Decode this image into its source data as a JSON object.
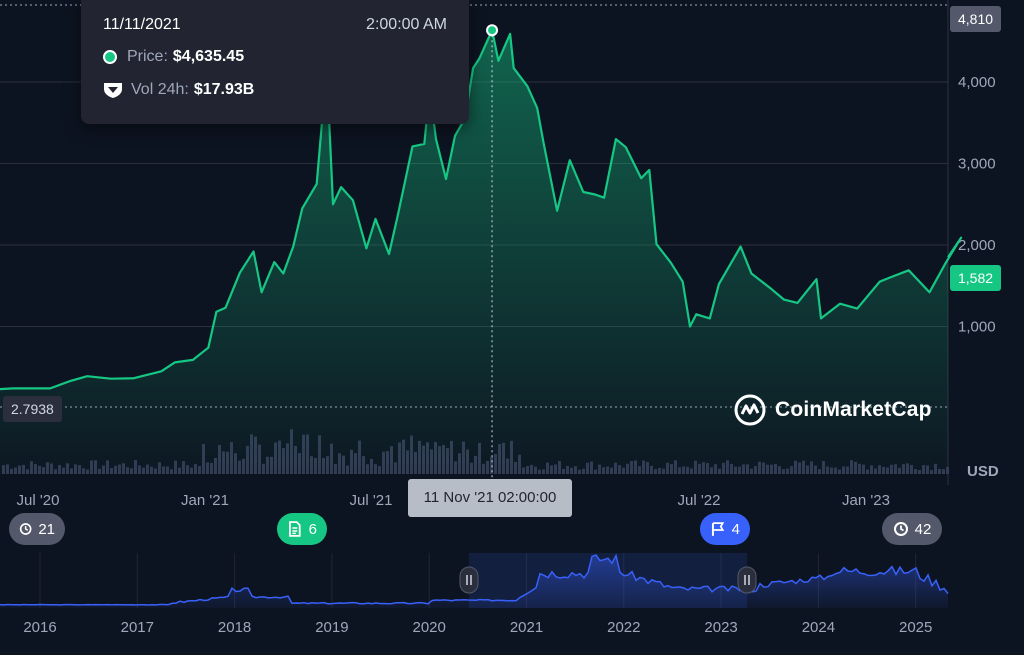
{
  "tooltip": {
    "date": "11/11/2021",
    "time": "2:00:00 AM",
    "price_label": "Price:",
    "price_value": "$4,635.45",
    "vol_label": "Vol 24h:",
    "vol_value": "$17.93B"
  },
  "price_tags": {
    "max": "4,810",
    "last": "1,582",
    "min": "2.7938"
  },
  "currency": "USD",
  "crosshair_label": "11 Nov '21 02:00:00",
  "events": {
    "history": "21",
    "docs": "6",
    "flags": "4",
    "later": "42"
  },
  "brand": {
    "name": "CoinMarketCap",
    "accent": "#16c784"
  },
  "colors": {
    "up": "#16c784",
    "background": "#0d1421",
    "navigator": "#3861fb"
  },
  "chart_data": {
    "type": "area",
    "x_ticks": [
      "Jul '20",
      "Jan '21",
      "Jul '21",
      "Jul '22",
      "Jan '23"
    ],
    "y_ticks": [
      1000,
      2000,
      3000,
      4000
    ],
    "y_tick_labels": [
      "1,000",
      "2,000",
      "3,000",
      "4,000"
    ],
    "ylim": [
      0,
      4900
    ],
    "grid": true,
    "crosshair": {
      "x": "2021-11-11",
      "y": 4635.45
    },
    "series": [
      {
        "values": [
          {
            "x": "2020-03-12",
            "y": 220
          },
          {
            "x": "2020-04-20",
            "y": 215
          },
          {
            "x": "2020-05-30",
            "y": 240
          },
          {
            "x": "2020-06-20",
            "y": 240
          },
          {
            "x": "2020-07-10",
            "y": 240
          },
          {
            "x": "2020-08-01",
            "y": 330
          },
          {
            "x": "2020-08-20",
            "y": 390
          },
          {
            "x": "2020-09-15",
            "y": 360
          },
          {
            "x": "2020-10-10",
            "y": 365
          },
          {
            "x": "2020-11-10",
            "y": 450
          },
          {
            "x": "2020-11-25",
            "y": 560
          },
          {
            "x": "2020-12-15",
            "y": 590
          },
          {
            "x": "2021-01-01",
            "y": 740
          },
          {
            "x": "2021-01-10",
            "y": 1180
          },
          {
            "x": "2021-01-20",
            "y": 1230
          },
          {
            "x": "2021-02-05",
            "y": 1660
          },
          {
            "x": "2021-02-20",
            "y": 1920
          },
          {
            "x": "2021-03-01",
            "y": 1420
          },
          {
            "x": "2021-03-15",
            "y": 1790
          },
          {
            "x": "2021-03-25",
            "y": 1650
          },
          {
            "x": "2021-04-05",
            "y": 1980
          },
          {
            "x": "2021-04-15",
            "y": 2450
          },
          {
            "x": "2021-05-01",
            "y": 2750
          },
          {
            "x": "2021-05-12",
            "y": 4180
          },
          {
            "x": "2021-05-19",
            "y": 2500
          },
          {
            "x": "2021-05-28",
            "y": 2710
          },
          {
            "x": "2021-06-10",
            "y": 2550
          },
          {
            "x": "2021-06-25",
            "y": 1960
          },
          {
            "x": "2021-07-05",
            "y": 2320
          },
          {
            "x": "2021-07-20",
            "y": 1890
          },
          {
            "x": "2021-07-30",
            "y": 2380
          },
          {
            "x": "2021-08-15",
            "y": 3210
          },
          {
            "x": "2021-08-28",
            "y": 3240
          },
          {
            "x": "2021-09-03",
            "y": 3900
          },
          {
            "x": "2021-09-10",
            "y": 3300
          },
          {
            "x": "2021-09-21",
            "y": 2810
          },
          {
            "x": "2021-10-01",
            "y": 3340
          },
          {
            "x": "2021-10-12",
            "y": 3550
          },
          {
            "x": "2021-10-21",
            "y": 4170
          },
          {
            "x": "2021-10-28",
            "y": 4290
          },
          {
            "x": "2021-11-11",
            "y": 4635
          },
          {
            "x": "2021-11-18",
            "y": 4260
          },
          {
            "x": "2021-12-01",
            "y": 4590
          },
          {
            "x": "2021-12-05",
            "y": 4170
          },
          {
            "x": "2021-12-20",
            "y": 3950
          },
          {
            "x": "2021-12-31",
            "y": 3680
          },
          {
            "x": "2022-01-07",
            "y": 3250
          },
          {
            "x": "2022-01-22",
            "y": 2420
          },
          {
            "x": "2022-02-05",
            "y": 3040
          },
          {
            "x": "2022-02-20",
            "y": 2650
          },
          {
            "x": "2022-03-05",
            "y": 2620
          },
          {
            "x": "2022-03-15",
            "y": 2580
          },
          {
            "x": "2022-03-28",
            "y": 3300
          },
          {
            "x": "2022-04-08",
            "y": 3200
          },
          {
            "x": "2022-04-25",
            "y": 2820
          },
          {
            "x": "2022-05-04",
            "y": 2920
          },
          {
            "x": "2022-05-12",
            "y": 2010
          },
          {
            "x": "2022-05-28",
            "y": 1780
          },
          {
            "x": "2022-06-10",
            "y": 1550
          },
          {
            "x": "2022-06-18",
            "y": 1000
          },
          {
            "x": "2022-06-25",
            "y": 1150
          },
          {
            "x": "2022-07-10",
            "y": 1100
          },
          {
            "x": "2022-07-20",
            "y": 1520
          },
          {
            "x": "2022-08-13",
            "y": 1980
          },
          {
            "x": "2022-08-25",
            "y": 1650
          },
          {
            "x": "2022-09-15",
            "y": 1470
          },
          {
            "x": "2022-09-30",
            "y": 1330
          },
          {
            "x": "2022-10-15",
            "y": 1290
          },
          {
            "x": "2022-11-05",
            "y": 1580
          },
          {
            "x": "2022-11-10",
            "y": 1100
          },
          {
            "x": "2022-12-01",
            "y": 1280
          },
          {
            "x": "2022-12-20",
            "y": 1220
          },
          {
            "x": "2023-01-14",
            "y": 1550
          },
          {
            "x": "2023-01-25",
            "y": 1600
          },
          {
            "x": "2023-02-15",
            "y": 1690
          },
          {
            "x": "2023-03-10",
            "y": 1420
          },
          {
            "x": "2023-03-28",
            "y": 1780
          },
          {
            "x": "2023-04-14",
            "y": 2090
          },
          {
            "x": "2023-04-25",
            "y": 1850
          }
        ]
      }
    ],
    "volume_note": "24h volume bars below price"
  },
  "navigator": {
    "years": [
      "2016",
      "2017",
      "2018",
      "2019",
      "2020",
      "2021",
      "2022",
      "2023",
      "2024",
      "2025"
    ],
    "selected_from": "2020-03-12",
    "selected_to": "2023-04-25"
  }
}
